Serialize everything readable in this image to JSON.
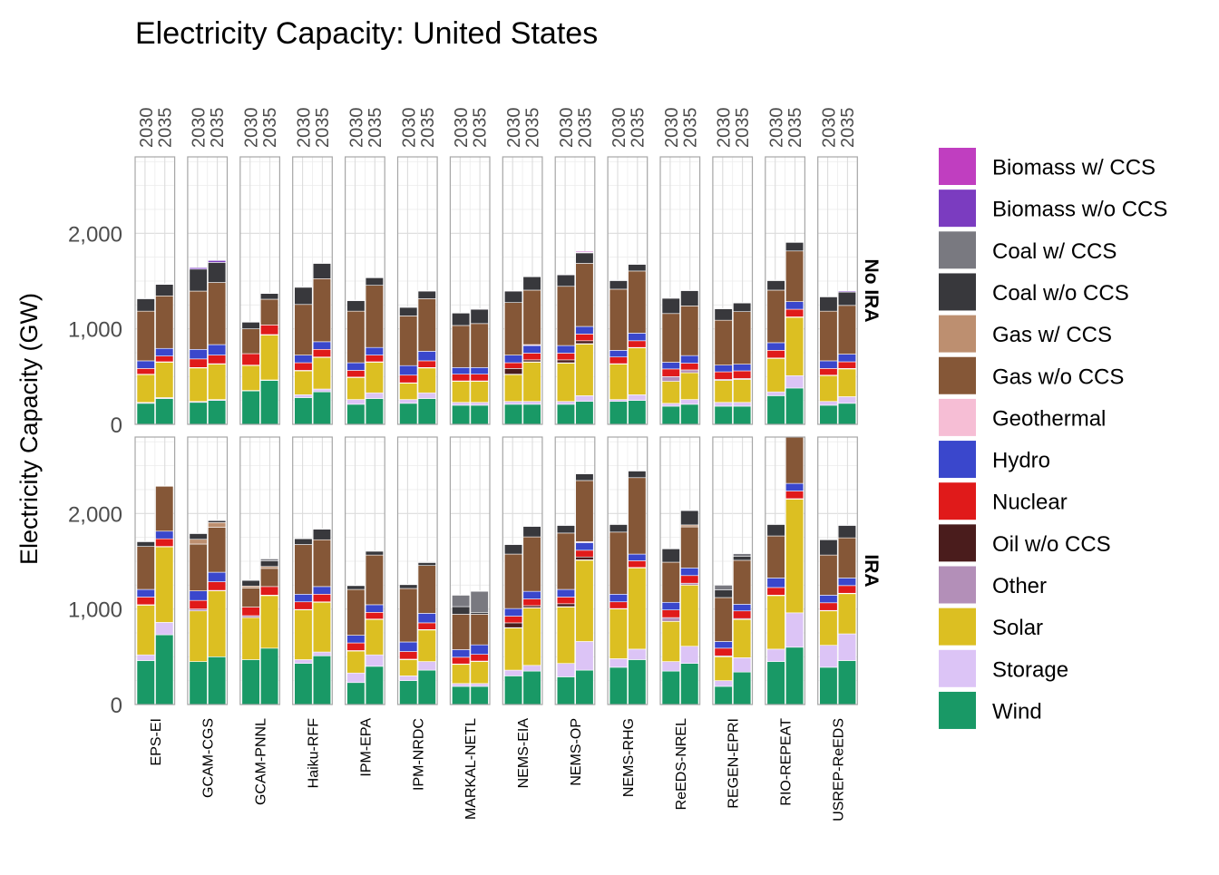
{
  "chart_data": {
    "type": "bar",
    "stacked": true,
    "title": "Electricity Capacity: United States",
    "xlabel": "",
    "ylabel": "Electricity Capacity (GW)",
    "ylim": [
      0,
      2800
    ],
    "yticks": [
      0,
      1000,
      2000
    ],
    "ytick_labels": [
      "0",
      "1,000",
      "2,000"
    ],
    "grid": true,
    "legend_position": "right",
    "years": [
      "2030",
      "2035"
    ],
    "models": [
      "EPS-EI",
      "GCAM-CGS",
      "GCAM-PNNL",
      "Haiku-RFF",
      "IPM-EPA",
      "IPM-NRDC",
      "MARKAL-NETL",
      "NEMS-EIA",
      "NEMS-OP",
      "NEMS-RHG",
      "ReEDS-NREL",
      "REGEN-EPRI",
      "RIO-REPEAT",
      "USREP-ReEDS"
    ],
    "technologies": [
      "Wind",
      "Storage",
      "Solar",
      "Other",
      "Oil w/o CCS",
      "Nuclear",
      "Hydro",
      "Geothermal",
      "Gas w/o CCS",
      "Gas w/ CCS",
      "Coal w/o CCS",
      "Coal w/ CCS",
      "Biomass w/o CCS",
      "Biomass w/ CCS"
    ],
    "legend_order": [
      "Biomass w/ CCS",
      "Biomass w/o CCS",
      "Coal w/ CCS",
      "Coal w/o CCS",
      "Gas w/ CCS",
      "Gas w/o CCS",
      "Geothermal",
      "Hydro",
      "Nuclear",
      "Oil w/o CCS",
      "Other",
      "Solar",
      "Storage",
      "Wind"
    ],
    "colors": {
      "Biomass w/ CCS": "#c03ec0",
      "Biomass w/o CCS": "#7b3cc0",
      "Coal w/ CCS": "#797980",
      "Coal w/o CCS": "#38383c",
      "Gas w/ CCS": "#bd8f70",
      "Gas w/o CCS": "#855737",
      "Geothermal": "#f6bed5",
      "Hydro": "#3a47cc",
      "Nuclear": "#e01a1a",
      "Oil w/o CCS": "#4a1c1c",
      "Other": "#b38fb8",
      "Solar": "#dcbf22",
      "Storage": "#dcc4f6",
      "Wind": "#199966"
    },
    "panels": [
      {
        "name": "No IRA",
        "bars": [
          [
            [
              220,
              10,
              290,
              5,
              0,
              60,
              80,
              0,
              520,
              0,
              130,
              0,
              5,
              0
            ],
            [
              270,
              10,
              370,
              5,
              0,
              60,
              80,
              0,
              550,
              0,
              120,
              0,
              5,
              0
            ]
          ],
          [
            [
              230,
              10,
              350,
              5,
              0,
              90,
              100,
              0,
              610,
              0,
              230,
              0,
              15,
              0
            ],
            [
              250,
              10,
              370,
              5,
              0,
              90,
              110,
              0,
              650,
              0,
              210,
              0,
              20,
              0
            ]
          ],
          [
            [
              350,
              5,
              260,
              5,
              0,
              120,
              0,
              0,
              260,
              0,
              70,
              0,
              5,
              0
            ],
            [
              460,
              5,
              470,
              5,
              0,
              100,
              0,
              0,
              270,
              0,
              60,
              0,
              5,
              0
            ]
          ],
          [
            [
              280,
              30,
              250,
              5,
              0,
              80,
              80,
              0,
              530,
              0,
              180,
              0,
              5,
              0
            ],
            [
              340,
              30,
              330,
              5,
              0,
              80,
              80,
              0,
              660,
              0,
              160,
              0,
              5,
              0
            ]
          ],
          [
            [
              210,
              50,
              230,
              5,
              0,
              70,
              80,
              0,
              540,
              0,
              110,
              0,
              5,
              0
            ],
            [
              270,
              60,
              320,
              5,
              0,
              70,
              80,
              0,
              650,
              0,
              80,
              0,
              5,
              0
            ]
          ],
          [
            [
              220,
              40,
              170,
              5,
              0,
              80,
              100,
              0,
              520,
              0,
              90,
              0,
              5,
              0
            ],
            [
              270,
              60,
              260,
              5,
              0,
              70,
              100,
              0,
              550,
              0,
              80,
              0,
              5,
              0
            ]
          ],
          [
            [
              200,
              30,
              220,
              5,
              0,
              70,
              70,
              0,
              440,
              0,
              130,
              0,
              5,
              0
            ],
            [
              200,
              30,
              220,
              5,
              0,
              70,
              70,
              0,
              460,
              0,
              150,
              0,
              5,
              0
            ]
          ],
          [
            [
              210,
              30,
              280,
              5,
              60,
              60,
              80,
              0,
              550,
              0,
              120,
              0,
              5,
              0
            ],
            [
              210,
              30,
              410,
              5,
              20,
              70,
              80,
              10,
              570,
              0,
              140,
              0,
              5,
              0
            ]
          ],
          [
            [
              210,
              30,
              400,
              5,
              30,
              70,
              80,
              0,
              620,
              0,
              120,
              0,
              5,
              0
            ],
            [
              240,
              60,
              540,
              5,
              30,
              70,
              80,
              0,
              660,
              0,
              110,
              0,
              5,
              10
            ]
          ],
          [
            [
              240,
              20,
              370,
              5,
              0,
              70,
              70,
              0,
              640,
              0,
              90,
              0,
              5,
              0
            ],
            [
              250,
              60,
              490,
              5,
              0,
              70,
              80,
              0,
              650,
              0,
              70,
              0,
              5,
              0
            ]
          ],
          [
            [
              190,
              30,
              230,
              50,
              0,
              80,
              70,
              0,
              510,
              0,
              160,
              0,
              5,
              0
            ],
            [
              210,
              50,
              280,
              30,
              0,
              70,
              80,
              0,
              520,
              0,
              160,
              0,
              5,
              0
            ]
          ],
          [
            [
              190,
              40,
              230,
              10,
              0,
              80,
              70,
              0,
              470,
              0,
              120,
              0,
              5,
              0
            ],
            [
              190,
              40,
              240,
              10,
              0,
              80,
              70,
              0,
              550,
              0,
              90,
              0,
              5,
              0
            ]
          ],
          [
            [
              300,
              40,
              350,
              5,
              0,
              80,
              80,
              0,
              550,
              0,
              100,
              0,
              5,
              0
            ],
            [
              380,
              130,
              610,
              5,
              0,
              80,
              80,
              0,
              530,
              0,
              90,
              0,
              5,
              0
            ]
          ],
          [
            [
              200,
              40,
              270,
              5,
              0,
              70,
              80,
              0,
              520,
              0,
              150,
              0,
              5,
              0
            ],
            [
              220,
              70,
              290,
              5,
              0,
              70,
              80,
              0,
              510,
              0,
              140,
              0,
              10,
              0
            ]
          ]
        ]
      },
      {
        "name": "IRA",
        "bars": [
          [
            [
              460,
              60,
              520,
              5,
              0,
              80,
              80,
              0,
              450,
              0,
              50,
              0,
              5,
              0
            ],
            [
              730,
              130,
              790,
              5,
              0,
              80,
              80,
              0,
              470,
              0,
              0,
              0,
              5,
              0
            ]
          ],
          [
            [
              450,
              0,
              530,
              20,
              0,
              90,
              100,
              0,
              490,
              50,
              60,
              0,
              5,
              0
            ],
            [
              500,
              0,
              690,
              5,
              0,
              90,
              100,
              0,
              470,
              50,
              20,
              0,
              5,
              0
            ]
          ],
          [
            [
              470,
              0,
              440,
              20,
              0,
              90,
              0,
              0,
              200,
              20,
              60,
              0,
              5,
              0
            ],
            [
              590,
              0,
              550,
              5,
              0,
              90,
              0,
              0,
              190,
              20,
              60,
              20,
              5,
              0
            ]
          ],
          [
            [
              430,
              40,
              520,
              5,
              0,
              80,
              80,
              0,
              520,
              0,
              60,
              0,
              5,
              0
            ],
            [
              510,
              40,
              520,
              5,
              0,
              80,
              80,
              0,
              490,
              0,
              110,
              0,
              5,
              0
            ]
          ],
          [
            [
              230,
              100,
              230,
              5,
              0,
              80,
              80,
              0,
              480,
              0,
              40,
              0,
              5,
              0
            ],
            [
              400,
              120,
              370,
              5,
              0,
              70,
              80,
              0,
              520,
              0,
              40,
              0,
              5,
              0
            ]
          ],
          [
            [
              250,
              50,
              170,
              5,
              0,
              80,
              100,
              0,
              560,
              0,
              40,
              0,
              5,
              0
            ],
            [
              360,
              90,
              330,
              5,
              0,
              70,
              100,
              0,
              500,
              0,
              30,
              10,
              5,
              0
            ]
          ],
          [
            [
              190,
              30,
              200,
              5,
              0,
              70,
              80,
              0,
              370,
              0,
              80,
              120,
              5,
              0
            ],
            [
              190,
              30,
              230,
              5,
              0,
              70,
              100,
              0,
              320,
              0,
              20,
              220,
              5,
              0
            ]
          ],
          [
            [
              300,
              60,
              440,
              5,
              50,
              70,
              80,
              0,
              570,
              0,
              100,
              0,
              5,
              0
            ],
            [
              350,
              60,
              600,
              5,
              20,
              70,
              80,
              0,
              570,
              0,
              110,
              0,
              5,
              0
            ]
          ],
          [
            [
              290,
              140,
              590,
              5,
              30,
              70,
              80,
              0,
              590,
              0,
              80,
              0,
              5,
              0
            ],
            [
              360,
              300,
              850,
              5,
              30,
              70,
              80,
              10,
              640,
              0,
              70,
              0,
              5,
              0
            ]
          ],
          [
            [
              390,
              90,
              520,
              5,
              0,
              70,
              80,
              0,
              650,
              0,
              80,
              0,
              5,
              0
            ],
            [
              470,
              110,
              850,
              5,
              0,
              70,
              70,
              0,
              800,
              0,
              70,
              0,
              5,
              0
            ]
          ],
          [
            [
              350,
              100,
              420,
              40,
              0,
              80,
              80,
              0,
              420,
              0,
              140,
              0,
              5,
              0
            ],
            [
              430,
              180,
              640,
              20,
              0,
              80,
              80,
              0,
              430,
              20,
              150,
              0,
              5,
              0
            ]
          ],
          [
            [
              190,
              60,
              250,
              10,
              0,
              80,
              70,
              0,
              460,
              0,
              80,
              50,
              5,
              0
            ],
            [
              340,
              150,
              400,
              10,
              0,
              80,
              70,
              0,
              460,
              0,
              40,
              30,
              5,
              0
            ]
          ],
          [
            [
              450,
              130,
              560,
              5,
              0,
              80,
              100,
              0,
              440,
              0,
              120,
              0,
              5,
              0
            ],
            [
              600,
              360,
              1190,
              5,
              0,
              80,
              80,
              0,
              500,
              0,
              80,
              0,
              5,
              0
            ]
          ],
          [
            [
              390,
              230,
              360,
              5,
              0,
              80,
              80,
              0,
              420,
              0,
              160,
              0,
              5,
              0
            ],
            [
              460,
              280,
              420,
              5,
              0,
              80,
              80,
              0,
              420,
              0,
              130,
              0,
              5,
              0
            ]
          ]
        ]
      }
    ]
  }
}
